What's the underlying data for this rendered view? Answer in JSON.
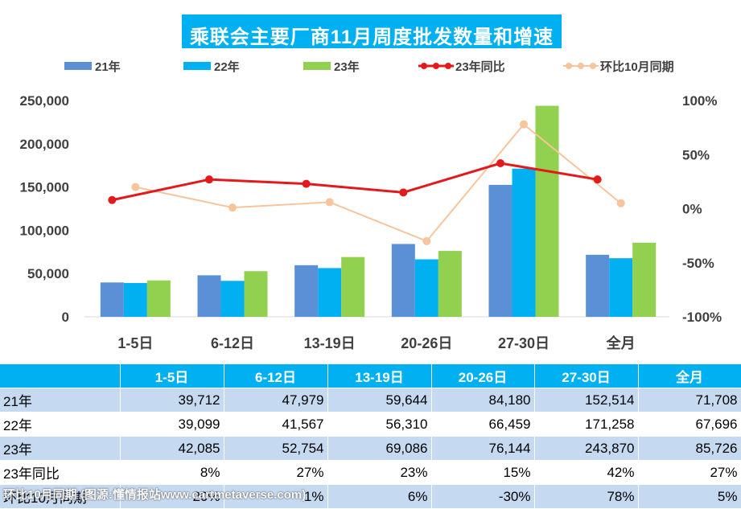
{
  "chart_data": {
    "type": "bar",
    "title": "乘联会主要厂商11月周度批发数量和增速",
    "categories": [
      "1-5日",
      "6-12日",
      "13-19日",
      "20-26日",
      "27-30日",
      "全月"
    ],
    "series": [
      {
        "name": "21年",
        "kind": "bar",
        "color": "#5b8fd6",
        "values": [
          39712,
          47979,
          59644,
          84180,
          152514,
          71708
        ]
      },
      {
        "name": "22年",
        "kind": "bar",
        "color": "#00b0f0",
        "values": [
          39099,
          41567,
          56310,
          66459,
          171258,
          67696
        ]
      },
      {
        "name": "23年",
        "kind": "bar",
        "color": "#92d050",
        "values": [
          42085,
          52754,
          69086,
          76144,
          243870,
          85726
        ]
      },
      {
        "name": "23年同比",
        "kind": "line",
        "axis": "right",
        "color": "#e31a1c",
        "values": [
          8,
          27,
          23,
          15,
          42,
          27
        ]
      },
      {
        "name": "环比10月同期",
        "kind": "line",
        "axis": "right",
        "color": "#f8c49c",
        "values": [
          20,
          1,
          6,
          -30,
          78,
          5
        ]
      }
    ],
    "y_left": {
      "min": 0,
      "max": 250000,
      "ticks": [
        "0",
        "50,000",
        "100,000",
        "150,000",
        "200,000",
        "250,000"
      ]
    },
    "y_right": {
      "min": -100,
      "max": 100,
      "ticks": [
        "-100%",
        "-50%",
        "0%",
        "50%",
        "100%"
      ]
    },
    "legend_position": "top",
    "grid": false
  },
  "table": {
    "header": [
      "",
      "1-5日",
      "6-12日",
      "13-19日",
      "20-26日",
      "27-30日",
      "全月"
    ],
    "rows": [
      [
        "21年",
        "39,712",
        "47,979",
        "59,644",
        "84,180",
        "152,514",
        "71,708"
      ],
      [
        "22年",
        "39,099",
        "41,567",
        "56,310",
        "66,459",
        "171,258",
        "67,696"
      ],
      [
        "23年",
        "42,085",
        "52,754",
        "69,086",
        "76,144",
        "243,870",
        "85,726"
      ],
      [
        "23年同比",
        "8%",
        "27%",
        "23%",
        "15%",
        "42%",
        "27%"
      ],
      [
        "环比10月同期",
        "20%",
        "1%",
        "6%",
        "-30%",
        "78%",
        "5%"
      ]
    ]
  },
  "watermark": "环比10月同期 (图源:懂情报站www.cartmetaverse.com)"
}
